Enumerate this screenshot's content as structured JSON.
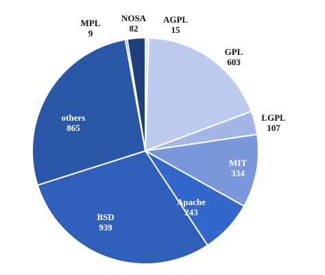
{
  "chart_data": {
    "type": "pie",
    "title": "",
    "start_angle_deg": 0,
    "direction": "clockwise",
    "slice_stroke": "#ffffff",
    "slices": [
      {
        "name": "AGPL",
        "value": 15,
        "color": "#dde4f4",
        "text_color": "#111111"
      },
      {
        "name": "GPL",
        "value": 603,
        "color": "#bccbee",
        "text_color": "#111111"
      },
      {
        "name": "LGPL",
        "value": 107,
        "color": "#a3b7e6",
        "text_color": "#111111"
      },
      {
        "name": "MIT",
        "value": 334,
        "color": "#7a97dc",
        "text_color": "#ffffff"
      },
      {
        "name": "Apache",
        "value": 243,
        "color": "#3367cb",
        "text_color": "#ffffff"
      },
      {
        "name": "BSD",
        "value": 939,
        "color": "#2f5fb8",
        "text_color": "#ffffff"
      },
      {
        "name": "others",
        "value": 865,
        "color": "#2a57a8",
        "text_color": "#ffffff"
      },
      {
        "name": "MPL",
        "value": 9,
        "color": "#4d74c8",
        "text_color": "#111111"
      },
      {
        "name": "NOSA",
        "value": 82,
        "color": "#1f3f7d",
        "text_color": "#111111"
      }
    ]
  }
}
